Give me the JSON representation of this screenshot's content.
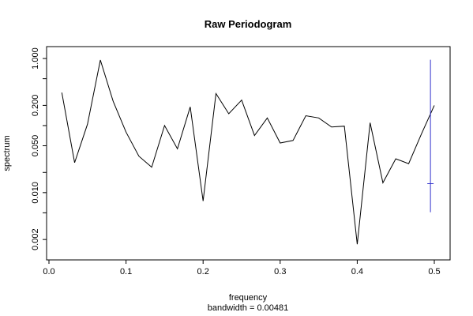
{
  "chart_data": {
    "type": "line",
    "title": "Raw Periodogram",
    "xlabel": "frequency",
    "xlabel_sub": "bandwidth = 0.00481",
    "ylabel": "spectrum",
    "y_scale": "log",
    "xlim": [
      0.0,
      0.5
    ],
    "ylim": [
      0.0012,
      1.35
    ],
    "x_ticks": [
      {
        "value": 0.0,
        "label": "0.0"
      },
      {
        "value": 0.1,
        "label": "0.1"
      },
      {
        "value": 0.2,
        "label": "0.2"
      },
      {
        "value": 0.3,
        "label": "0.3"
      },
      {
        "value": 0.4,
        "label": "0.4"
      },
      {
        "value": 0.5,
        "label": "0.5"
      }
    ],
    "y_ticks": [
      {
        "value": 0.002,
        "label": "0.002"
      },
      {
        "value": 0.005,
        "label": ""
      },
      {
        "value": 0.01,
        "label": "0.010"
      },
      {
        "value": 0.02,
        "label": ""
      },
      {
        "value": 0.05,
        "label": "0.050"
      },
      {
        "value": 0.1,
        "label": ""
      },
      {
        "value": 0.2,
        "label": "0.200"
      },
      {
        "value": 0.5,
        "label": ""
      },
      {
        "value": 1.0,
        "label": "1.000"
      }
    ],
    "grid": false,
    "series": [
      {
        "color": "#000000",
        "x": [
          0.0167,
          0.0333,
          0.05,
          0.0667,
          0.0833,
          0.1,
          0.1167,
          0.1333,
          0.15,
          0.1667,
          0.1833,
          0.2,
          0.2167,
          0.2333,
          0.25,
          0.2667,
          0.2833,
          0.3,
          0.3167,
          0.3333,
          0.35,
          0.3667,
          0.3833,
          0.4,
          0.4167,
          0.4333,
          0.45,
          0.4667,
          0.4833,
          0.5
        ],
        "y": [
          0.31,
          0.028,
          0.105,
          0.95,
          0.23,
          0.08,
          0.035,
          0.024,
          0.1,
          0.045,
          0.19,
          0.0075,
          0.3,
          0.15,
          0.24,
          0.071,
          0.13,
          0.055,
          0.06,
          0.14,
          0.13,
          0.095,
          0.098,
          0.0017,
          0.11,
          0.014,
          0.032,
          0.027,
          0.075,
          0.2
        ]
      }
    ],
    "error_bar": {
      "color": "#3333cc",
      "x": 0.495,
      "y_low": 0.0051,
      "y_high": 0.96,
      "y_mid": 0.0136
    }
  }
}
